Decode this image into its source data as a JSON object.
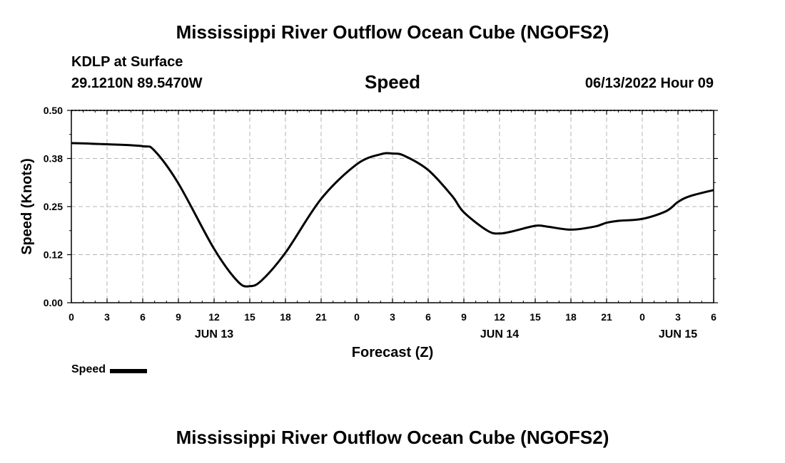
{
  "page": {
    "title": "Mississippi River Outflow Ocean Cube (NGOFS2)",
    "footer_title": "Mississippi River Outflow Ocean Cube (NGOFS2)",
    "station": "KDLP at Surface",
    "coords": "29.1210N  89.5470W",
    "datetime": "06/13/2022 Hour 09"
  },
  "chart_data": {
    "type": "line",
    "title": "Speed",
    "xlabel": "Forecast (Z)",
    "ylabel": "Speed (Knots)",
    "xlim": [
      0,
      54
    ],
    "ylim": [
      0,
      0.5
    ],
    "grid": true,
    "yticks": [
      0.0,
      0.125,
      0.25,
      0.375,
      0.5
    ],
    "ytick_labels": [
      "0.00",
      "0.12",
      "0.25",
      "0.38",
      "0.50"
    ],
    "xticks": [
      0,
      3,
      6,
      9,
      12,
      15,
      18,
      21,
      24,
      27,
      30,
      33,
      36,
      39,
      42,
      45,
      48,
      51,
      54
    ],
    "xtick_labels": [
      "0",
      "3",
      "6",
      "9",
      "12",
      "15",
      "18",
      "21",
      "0",
      "3",
      "6",
      "9",
      "12",
      "15",
      "18",
      "21",
      "0",
      "3",
      "6"
    ],
    "day_labels": [
      {
        "x": 12,
        "label": "JUN 13"
      },
      {
        "x": 36,
        "label": "JUN 14"
      },
      {
        "x": 51,
        "label": "JUN 15"
      }
    ],
    "legend": {
      "label": "Speed",
      "placement": "bottom-left"
    },
    "series": [
      {
        "name": "Speed",
        "color": "#000000",
        "x": [
          0,
          3,
          6,
          7,
          9,
          12,
          14,
          15,
          16,
          18,
          21,
          24,
          26,
          27,
          28,
          30,
          32,
          33,
          35,
          36,
          37,
          39,
          40,
          42,
          44,
          45,
          46,
          48,
          50,
          51,
          52,
          54
        ],
        "y": [
          0.415,
          0.412,
          0.407,
          0.395,
          0.31,
          0.14,
          0.055,
          0.043,
          0.058,
          0.13,
          0.27,
          0.36,
          0.386,
          0.388,
          0.382,
          0.345,
          0.278,
          0.235,
          0.187,
          0.18,
          0.185,
          0.2,
          0.198,
          0.19,
          0.198,
          0.208,
          0.213,
          0.218,
          0.238,
          0.262,
          0.277,
          0.293
        ]
      }
    ]
  }
}
